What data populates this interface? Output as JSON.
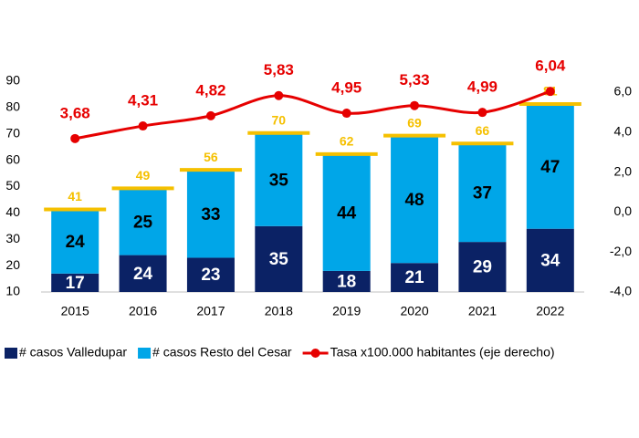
{
  "chart_data": {
    "type": "bar",
    "categories": [
      "2015",
      "2016",
      "2017",
      "2018",
      "2019",
      "2020",
      "2021",
      "2022"
    ],
    "stacked": true,
    "series": [
      {
        "name": "# casos Valledupar",
        "color": "#0b2265",
        "values": [
          17,
          24,
          23,
          35,
          18,
          21,
          29,
          34
        ]
      },
      {
        "name": "# casos Resto del Cesar",
        "color": "#00a6e8",
        "values": [
          24,
          25,
          33,
          35,
          44,
          48,
          37,
          47
        ]
      },
      {
        "name": "Tasa x100.000 habitantes (eje derecho)",
        "type": "line",
        "axis": "y2",
        "color": "#e60000",
        "values": [
          3.68,
          4.31,
          4.82,
          5.83,
          4.95,
          5.33,
          4.99,
          6.04
        ],
        "value_labels": [
          "3,68",
          "4,31",
          "4,82",
          "5,83",
          "4,95",
          "5,33",
          "4,99",
          "6,04"
        ]
      }
    ],
    "totals": [
      41,
      49,
      56,
      70,
      62,
      69,
      66,
      81
    ],
    "totals_color": "#f5c000",
    "ylim": [
      10,
      90
    ],
    "yticks": [
      10,
      20,
      30,
      40,
      50,
      60,
      70,
      80,
      90
    ],
    "y2lim": [
      -4,
      6.55
    ],
    "y2ticks": [
      {
        "value": -4,
        "label": "-4,0"
      },
      {
        "value": -2,
        "label": "-2,0"
      },
      {
        "value": 0,
        "label": "0,0"
      },
      {
        "value": 2,
        "label": "2,0"
      },
      {
        "value": 4,
        "label": "4,0"
      },
      {
        "value": 6,
        "label": "6,0"
      }
    ],
    "legend": "bottom"
  }
}
